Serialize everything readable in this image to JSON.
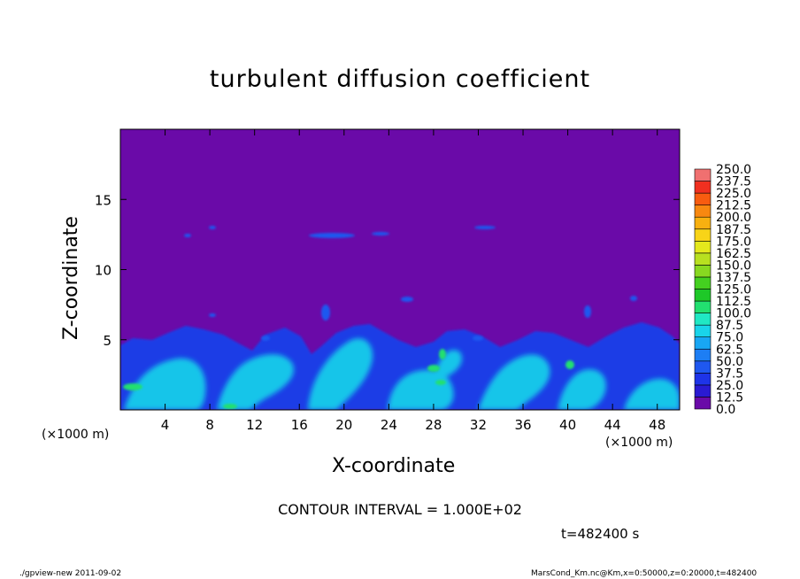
{
  "chart_data": {
    "type": "heatmap",
    "title": "turbulent diffusion coefficient",
    "xlabel": "X-coordinate",
    "ylabel": "Z-coordinate",
    "x_unit_label": "(×1000 m)",
    "xlim": [
      0,
      50
    ],
    "ylim": [
      0,
      20
    ],
    "x_ticks": [
      4,
      8,
      12,
      16,
      20,
      24,
      28,
      32,
      36,
      40,
      44,
      48
    ],
    "y_ticks": [
      5,
      10,
      15
    ],
    "colorbar": {
      "levels": [
        "0.0",
        "12.5",
        "25.0",
        "37.5",
        "50.0",
        "62.5",
        "75.0",
        "87.5",
        "100.0",
        "112.5",
        "125.0",
        "137.5",
        "150.0",
        "162.5",
        "175.0",
        "187.5",
        "200.0",
        "212.5",
        "225.0",
        "237.5",
        "250.0"
      ],
      "colors": [
        "#6a0aa8",
        "#2a1ad2",
        "#1e34e8",
        "#1f58f0",
        "#1d7ef4",
        "#18a6f4",
        "#19d4ea",
        "#20e8c4",
        "#22e070",
        "#1ec828",
        "#44d020",
        "#88d820",
        "#b8e020",
        "#e4e81c",
        "#f8d418",
        "#f8b010",
        "#f88810",
        "#f85c10",
        "#f03020",
        "#f07070"
      ]
    },
    "annotations": {
      "contour_interval": "CONTOUR INTERVAL = 1.000E+02",
      "time": "t=482400 s",
      "footer_left": "./gpview-new  2011-09-02",
      "footer_right": "MarsCond_Km.nc@Km,x=0:50000,z=0:20000,t=482400"
    }
  }
}
